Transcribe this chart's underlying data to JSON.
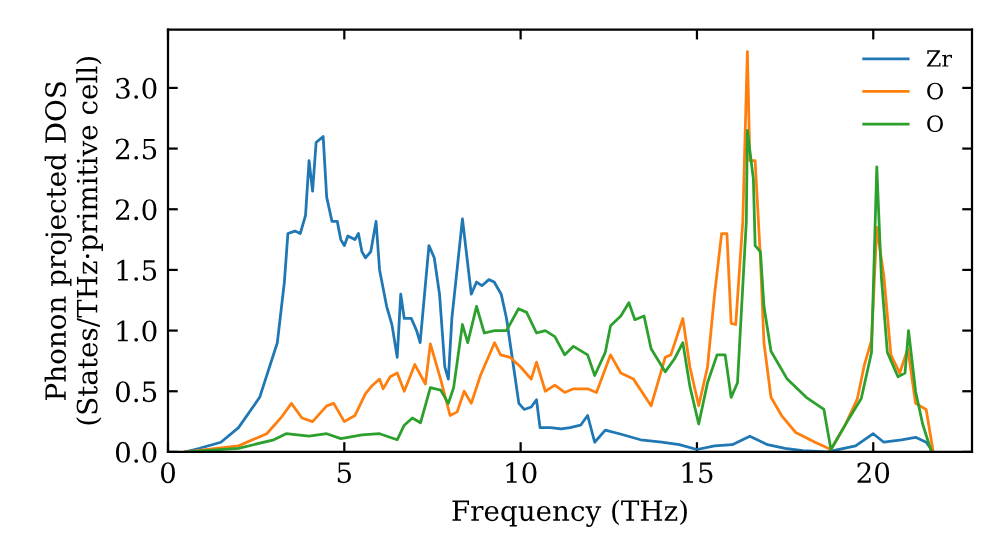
{
  "chart_data": {
    "type": "line",
    "xlabel": "Frequency (THz)",
    "ylabel": "Phonon projected DOS\n(States/THz·primitive cell)",
    "xlim": [
      0,
      22.8
    ],
    "ylim": [
      0,
      3.48
    ],
    "xticks": [
      0,
      5,
      10,
      15,
      20
    ],
    "yticks": [
      {
        "value": 0,
        "label": "0.0"
      },
      {
        "value": 0.5,
        "label": "0.5"
      },
      {
        "value": 1,
        "label": "1.0"
      },
      {
        "value": 1.5,
        "label": "1.5"
      },
      {
        "value": 2,
        "label": "2.0"
      },
      {
        "value": 2.5,
        "label": "2.5"
      },
      {
        "value": 3,
        "label": "3.0"
      }
    ],
    "grid": false,
    "legend": "top right",
    "series": [
      {
        "name": "Zr",
        "color": "#1f77b4",
        "x": [
          0.5,
          0.9,
          1.5,
          2.0,
          2.6,
          3.1,
          3.3,
          3.4,
          3.6,
          3.75,
          3.9,
          4.0,
          4.1,
          4.2,
          4.4,
          4.5,
          4.65,
          4.8,
          4.9,
          5.0,
          5.1,
          5.3,
          5.4,
          5.5,
          5.6,
          5.75,
          5.9,
          6.0,
          6.2,
          6.35,
          6.5,
          6.6,
          6.7,
          6.9,
          7.05,
          7.15,
          7.4,
          7.55,
          7.7,
          7.85,
          7.95,
          8.05,
          8.35,
          8.6,
          8.75,
          8.9,
          9.1,
          9.25,
          9.45,
          9.6,
          9.8,
          9.95,
          10.1,
          10.3,
          10.45,
          10.55,
          10.85,
          11.15,
          11.4,
          11.7,
          11.9,
          12.1,
          12.4,
          12.8,
          13.4,
          14.0,
          14.5,
          15.0,
          15.5,
          16.0,
          16.5,
          17.0,
          17.5,
          18.0,
          18.7,
          19.5,
          20.0,
          20.3,
          20.8,
          21.2,
          21.5,
          21.7
        ],
        "values": [
          0,
          0.03,
          0.08,
          0.2,
          0.45,
          0.9,
          1.4,
          1.8,
          1.82,
          1.8,
          1.95,
          2.4,
          2.15,
          2.55,
          2.6,
          2.1,
          1.9,
          1.9,
          1.75,
          1.7,
          1.78,
          1.75,
          1.8,
          1.65,
          1.6,
          1.65,
          1.9,
          1.5,
          1.2,
          1.05,
          0.78,
          1.3,
          1.1,
          1.1,
          1.0,
          0.9,
          1.7,
          1.6,
          1.3,
          0.7,
          0.6,
          1.1,
          1.92,
          1.3,
          1.4,
          1.37,
          1.42,
          1.4,
          1.3,
          1.1,
          0.7,
          0.4,
          0.35,
          0.37,
          0.43,
          0.2,
          0.2,
          0.19,
          0.2,
          0.22,
          0.3,
          0.08,
          0.18,
          0.15,
          0.1,
          0.08,
          0.06,
          0.02,
          0.05,
          0.06,
          0.13,
          0.06,
          0.03,
          0.01,
          0,
          0.05,
          0.15,
          0.08,
          0.1,
          0.12,
          0.08,
          0
        ]
      },
      {
        "name": "O",
        "color": "#ff7f0e",
        "x": [
          0.5,
          2.0,
          2.8,
          3.2,
          3.5,
          3.8,
          4.1,
          4.5,
          4.7,
          5.0,
          5.3,
          5.6,
          5.8,
          6.0,
          6.1,
          6.3,
          6.5,
          6.7,
          7.0,
          7.3,
          7.44,
          7.73,
          8.0,
          8.2,
          8.4,
          8.6,
          8.86,
          9.26,
          9.43,
          9.7,
          10.0,
          10.3,
          10.45,
          10.7,
          10.97,
          11.25,
          11.5,
          11.9,
          12.15,
          12.55,
          12.84,
          13.2,
          13.7,
          14.1,
          14.26,
          14.6,
          14.8,
          15.05,
          15.3,
          15.5,
          15.7,
          15.85,
          15.97,
          16.1,
          16.3,
          16.43,
          16.5,
          16.65,
          16.8,
          16.9,
          17.1,
          17.4,
          17.8,
          18.35,
          18.8,
          19.2,
          19.55,
          19.75,
          19.95,
          20.1,
          20.3,
          20.5,
          20.75,
          20.98,
          21.2,
          21.5,
          21.7
        ],
        "values": [
          0,
          0.05,
          0.15,
          0.28,
          0.4,
          0.28,
          0.25,
          0.38,
          0.4,
          0.25,
          0.3,
          0.48,
          0.55,
          0.6,
          0.52,
          0.62,
          0.65,
          0.5,
          0.72,
          0.56,
          0.89,
          0.6,
          0.3,
          0.33,
          0.5,
          0.4,
          0.63,
          0.9,
          0.8,
          0.78,
          0.7,
          0.6,
          0.74,
          0.5,
          0.55,
          0.49,
          0.52,
          0.52,
          0.49,
          0.8,
          0.65,
          0.6,
          0.38,
          0.78,
          0.8,
          1.1,
          0.7,
          0.38,
          0.7,
          1.3,
          1.8,
          1.8,
          1.06,
          1.05,
          1.9,
          3.3,
          2.4,
          2.4,
          1.6,
          0.9,
          0.45,
          0.3,
          0.16,
          0.08,
          0.02,
          0.22,
          0.44,
          0.72,
          0.92,
          1.85,
          1.45,
          0.8,
          0.65,
          0.85,
          0.4,
          0.35,
          0
        ]
      },
      {
        "name": "O",
        "color": "#2ca02c",
        "x": [
          0.5,
          2.0,
          3.0,
          3.35,
          4.0,
          4.5,
          4.9,
          5.5,
          6.0,
          6.5,
          6.7,
          6.93,
          7.16,
          7.44,
          7.73,
          7.95,
          8.1,
          8.35,
          8.5,
          8.75,
          8.97,
          9.26,
          9.6,
          9.94,
          10.17,
          10.45,
          10.7,
          10.97,
          11.25,
          11.5,
          11.9,
          12.1,
          12.4,
          12.55,
          12.84,
          13.07,
          13.24,
          13.5,
          13.7,
          14.1,
          14.37,
          14.6,
          14.8,
          15.05,
          15.3,
          15.57,
          15.8,
          15.97,
          16.15,
          16.4,
          16.43,
          16.6,
          16.65,
          16.8,
          16.9,
          17.1,
          17.56,
          18.1,
          18.6,
          18.8,
          19.26,
          19.66,
          19.95,
          20.1,
          20.23,
          20.4,
          20.7,
          20.9,
          21.0,
          21.2,
          21.4,
          21.65
        ],
        "values": [
          0,
          0.03,
          0.1,
          0.15,
          0.13,
          0.15,
          0.11,
          0.14,
          0.15,
          0.1,
          0.22,
          0.28,
          0.24,
          0.53,
          0.51,
          0.4,
          0.53,
          1.05,
          0.9,
          1.2,
          0.98,
          1.0,
          1.0,
          1.18,
          1.15,
          0.98,
          1.0,
          0.95,
          0.8,
          0.87,
          0.8,
          0.63,
          0.82,
          1.04,
          1.12,
          1.23,
          1.09,
          1.12,
          0.85,
          0.66,
          0.77,
          0.9,
          0.54,
          0.23,
          0.57,
          0.8,
          0.8,
          0.45,
          0.57,
          1.9,
          2.65,
          2.25,
          1.7,
          1.65,
          1.2,
          0.83,
          0.6,
          0.45,
          0.35,
          0.02,
          0.25,
          0.44,
          0.82,
          2.35,
          1.44,
          0.82,
          0.62,
          0.65,
          1.0,
          0.5,
          0.23,
          0
        ]
      }
    ]
  }
}
